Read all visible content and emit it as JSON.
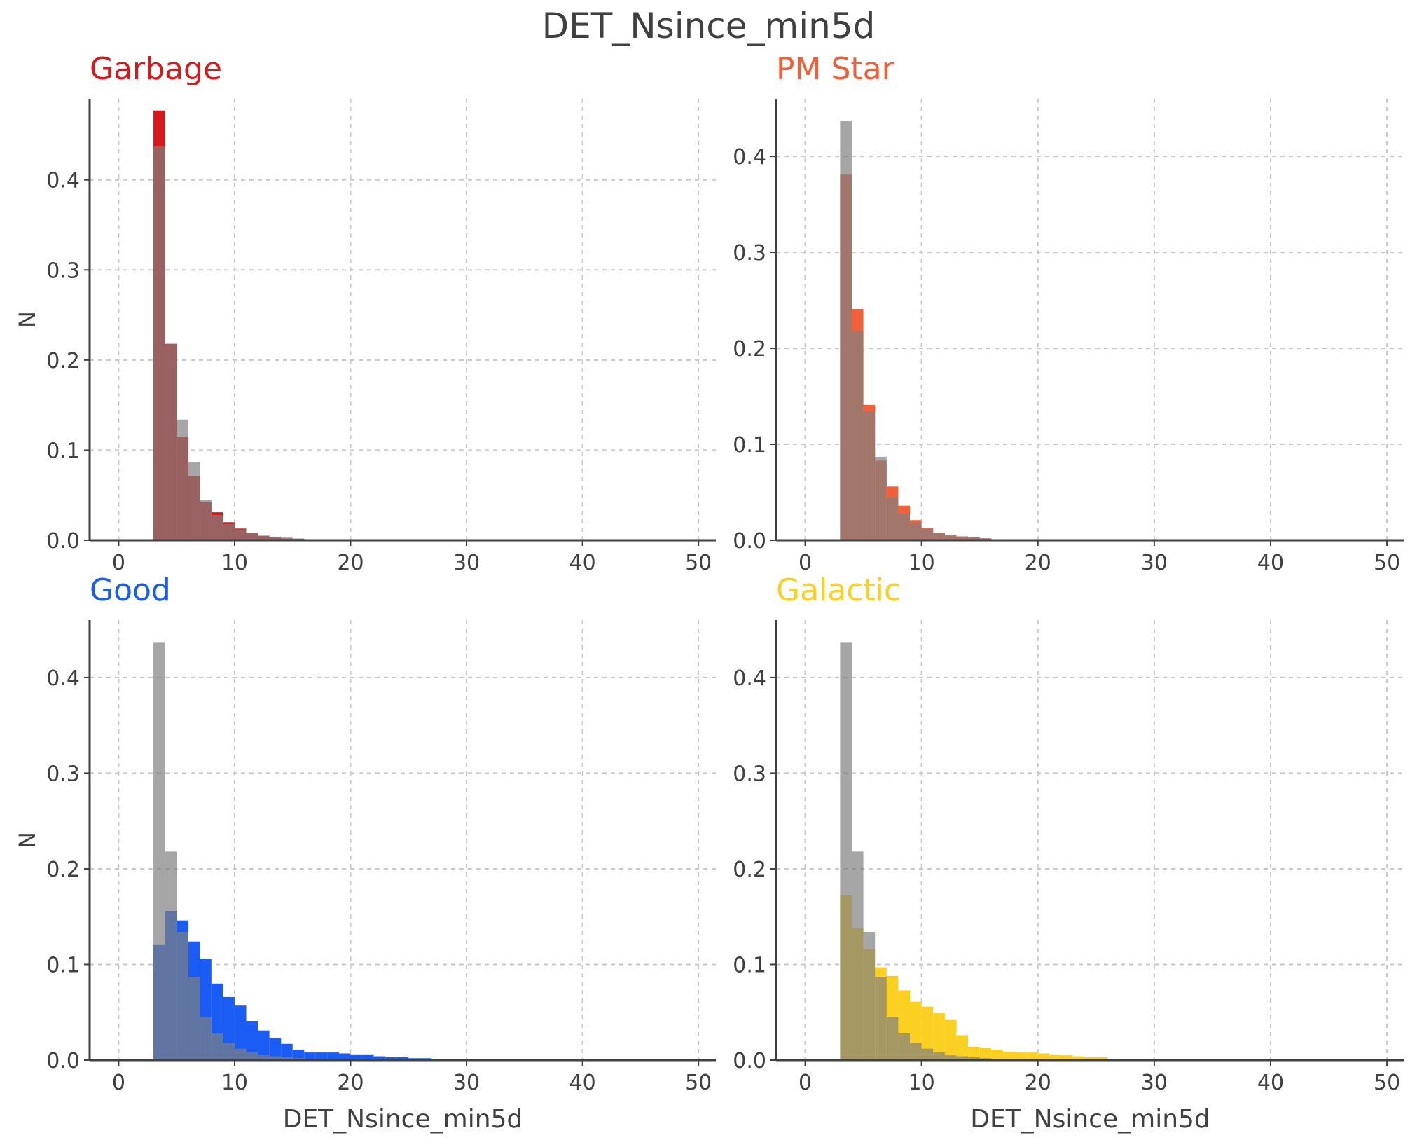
{
  "figure_title": "DET_Nsince_min5d",
  "colors": {
    "Garbage": "#d7191c",
    "PM Star": "#f0603a",
    "Good": "#1a5cf4",
    "Galactic": "#fbd020",
    "all": "#808080",
    "axis": "#404040",
    "grid": "#c8c8c8"
  },
  "chart_data": [
    {
      "type": "bar",
      "title": "Garbage",
      "xlabel": "",
      "ylabel": "N",
      "xlim": [
        -2.5,
        51.5
      ],
      "ylim": [
        0,
        0.49
      ],
      "xticks": [
        0,
        10,
        20,
        30,
        40,
        50
      ],
      "yticks": [
        0.0,
        0.1,
        0.2,
        0.3,
        0.4
      ],
      "bin_start": 3,
      "bin_width": 1,
      "grid": true,
      "series": [
        {
          "values": [
            0.477,
            0.218,
            0.115,
            0.071,
            0.042,
            0.031,
            0.02,
            0.013,
            0.008,
            0.005,
            0.003,
            0.002,
            0.0015,
            0.001,
            0.001
          ]
        },
        {
          "values": [
            0.437,
            0.218,
            0.134,
            0.087,
            0.045,
            0.028,
            0.018,
            0.012,
            0.008,
            0.005,
            0.004,
            0.003,
            0.002,
            0.001,
            0.001
          ]
        }
      ]
    },
    {
      "type": "bar",
      "title": "PM Star",
      "xlabel": "",
      "ylabel": "",
      "xlim": [
        -2.5,
        51.5
      ],
      "ylim": [
        0,
        0.46
      ],
      "xticks": [
        0,
        10,
        20,
        30,
        40,
        50
      ],
      "yticks": [
        0.0,
        0.1,
        0.2,
        0.3,
        0.4
      ],
      "bin_start": 3,
      "bin_width": 1,
      "grid": true,
      "series": [
        {
          "values": [
            0.381,
            0.241,
            0.141,
            0.083,
            0.056,
            0.036,
            0.021,
            0.013,
            0.008,
            0.005,
            0.004,
            0.003,
            0.002,
            0.001,
            0.001
          ]
        },
        {
          "values": [
            0.437,
            0.218,
            0.134,
            0.087,
            0.045,
            0.028,
            0.018,
            0.012,
            0.008,
            0.005,
            0.004,
            0.003,
            0.002,
            0.001,
            0.001
          ]
        }
      ]
    },
    {
      "type": "bar",
      "title": "Good",
      "xlabel": "DET_Nsince_min5d",
      "ylabel": "N",
      "xlim": [
        -2.5,
        51.5
      ],
      "ylim": [
        0,
        0.46
      ],
      "xticks": [
        0,
        10,
        20,
        30,
        40,
        50
      ],
      "yticks": [
        0.0,
        0.1,
        0.2,
        0.3,
        0.4
      ],
      "bin_start": 3,
      "bin_width": 1,
      "grid": true,
      "series": [
        {
          "values": [
            0.121,
            0.156,
            0.146,
            0.124,
            0.106,
            0.08,
            0.066,
            0.057,
            0.041,
            0.031,
            0.023,
            0.017,
            0.011,
            0.008,
            0.008,
            0.008,
            0.007,
            0.006,
            0.006,
            0.004,
            0.003,
            0.003,
            0.002,
            0.002
          ]
        },
        {
          "values": [
            0.437,
            0.218,
            0.134,
            0.087,
            0.045,
            0.028,
            0.018,
            0.012,
            0.008,
            0.005,
            0.004,
            0.003,
            0.002,
            0.001,
            0.001
          ]
        }
      ]
    },
    {
      "type": "bar",
      "title": "Galactic",
      "xlabel": "DET_Nsince_min5d",
      "ylabel": "",
      "xlim": [
        -2.5,
        51.5
      ],
      "ylim": [
        0,
        0.46
      ],
      "xticks": [
        0,
        10,
        20,
        30,
        40,
        50
      ],
      "yticks": [
        0.0,
        0.1,
        0.2,
        0.3,
        0.4
      ],
      "bin_start": 3,
      "bin_width": 1,
      "grid": true,
      "series": [
        {
          "values": [
            0.172,
            0.138,
            0.116,
            0.097,
            0.088,
            0.073,
            0.061,
            0.056,
            0.049,
            0.042,
            0.026,
            0.014,
            0.013,
            0.011,
            0.009,
            0.008,
            0.008,
            0.007,
            0.006,
            0.005,
            0.004,
            0.003,
            0.003
          ]
        },
        {
          "values": [
            0.437,
            0.218,
            0.134,
            0.087,
            0.045,
            0.028,
            0.018,
            0.012,
            0.008,
            0.005,
            0.004,
            0.003,
            0.002,
            0.001,
            0.001
          ]
        }
      ]
    }
  ]
}
